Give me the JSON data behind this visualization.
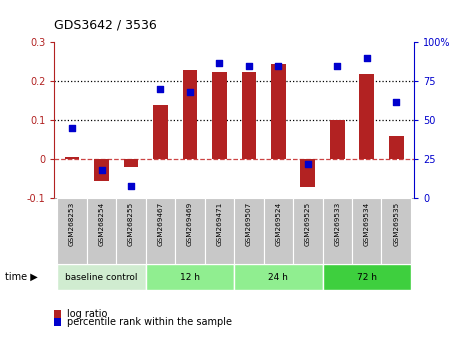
{
  "title": "GDS3642 / 3536",
  "samples": [
    "GSM268253",
    "GSM268254",
    "GSM268255",
    "GSM269467",
    "GSM269469",
    "GSM269471",
    "GSM269507",
    "GSM269524",
    "GSM269525",
    "GSM269533",
    "GSM269534",
    "GSM269535"
  ],
  "log_ratio": [
    0.005,
    -0.055,
    -0.02,
    0.14,
    0.23,
    0.225,
    0.225,
    0.245,
    -0.07,
    0.1,
    0.22,
    0.06
  ],
  "percentile_pct": [
    45,
    18,
    8,
    70,
    68,
    87,
    85,
    85,
    22,
    85,
    90,
    62
  ],
  "bar_color": "#b22222",
  "dot_color": "#0000cd",
  "ylim_left": [
    -0.1,
    0.3
  ],
  "ylim_right": [
    0,
    100
  ],
  "yticks_left": [
    -0.1,
    0.0,
    0.1,
    0.2,
    0.3
  ],
  "yticks_right": [
    0,
    25,
    50,
    75,
    100
  ],
  "dotted_lines": [
    0.1,
    0.2
  ],
  "dashed_zero_color": "#cc4444",
  "groups": [
    {
      "label": "baseline control",
      "start": 0,
      "end": 3,
      "color": "#d0ecd0"
    },
    {
      "label": "12 h",
      "start": 3,
      "end": 6,
      "color": "#90ee90"
    },
    {
      "label": "24 h",
      "start": 6,
      "end": 9,
      "color": "#90ee90"
    },
    {
      "label": "72 h",
      "start": 9,
      "end": 12,
      "color": "#3ecf3e"
    }
  ],
  "time_label": "time",
  "legend_items": [
    {
      "label": "log ratio",
      "color": "#b22222"
    },
    {
      "label": "percentile rank within the sample",
      "color": "#0000cd"
    }
  ],
  "background_color": "#ffffff",
  "label_bg": "#c8c8c8",
  "bar_width": 0.5
}
